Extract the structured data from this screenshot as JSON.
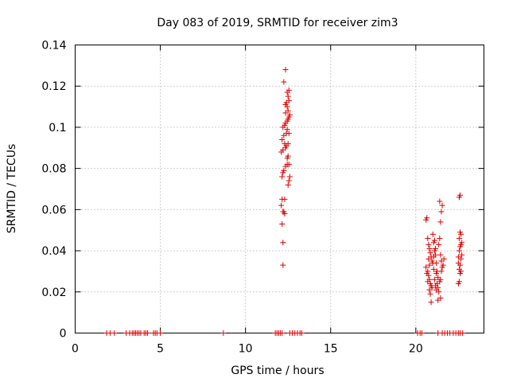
{
  "chart_data": {
    "type": "scatter",
    "title": "Day 083 of 2019, SRMTID for receiver zim3",
    "xlabel": "GPS time / hours",
    "ylabel": "SRMTID / TECUs",
    "xlim": [
      0,
      24
    ],
    "ylim": [
      0,
      0.14
    ],
    "xticks": [
      0,
      5,
      10,
      15,
      20
    ],
    "xtick_labels": [
      "0",
      "5",
      "10",
      "15",
      "20"
    ],
    "yticks": [
      0,
      0.02,
      0.04,
      0.06,
      0.08,
      0.1,
      0.12,
      0.14
    ],
    "ytick_labels": [
      "0",
      "0.02",
      "0.04",
      "0.06",
      "0.08",
      "0.1",
      "0.12",
      "0.14"
    ],
    "grid": true,
    "marker": "+",
    "marker_color": "#e00000",
    "series": [
      {
        "name": "SRMTID",
        "points": [
          [
            1.85,
            0
          ],
          [
            2.05,
            0
          ],
          [
            2.3,
            0
          ],
          [
            3.0,
            0
          ],
          [
            3.2,
            0
          ],
          [
            3.35,
            0
          ],
          [
            3.45,
            0
          ],
          [
            3.55,
            0
          ],
          [
            3.65,
            0
          ],
          [
            3.75,
            0
          ],
          [
            3.85,
            0
          ],
          [
            4.05,
            0
          ],
          [
            4.15,
            0
          ],
          [
            4.25,
            0
          ],
          [
            4.6,
            0
          ],
          [
            4.7,
            0
          ],
          [
            4.8,
            0
          ],
          [
            5.0,
            0
          ],
          [
            8.7,
            0
          ],
          [
            11.75,
            0
          ],
          [
            11.85,
            0
          ],
          [
            11.95,
            0
          ],
          [
            12.05,
            0
          ],
          [
            12.15,
            0
          ],
          [
            12.6,
            0
          ],
          [
            12.75,
            0
          ],
          [
            12.9,
            0
          ],
          [
            13.05,
            0
          ],
          [
            13.2,
            0
          ],
          [
            13.3,
            0
          ],
          [
            20.1,
            0
          ],
          [
            20.25,
            0
          ],
          [
            20.35,
            0
          ],
          [
            21.3,
            0
          ],
          [
            21.55,
            0
          ],
          [
            21.7,
            0
          ],
          [
            21.85,
            0
          ],
          [
            22.0,
            0
          ],
          [
            22.2,
            0
          ],
          [
            22.35,
            0
          ],
          [
            22.5,
            0
          ],
          [
            22.6,
            0
          ],
          [
            22.75,
            0
          ],
          [
            12.2,
            0.033
          ],
          [
            12.2,
            0.044
          ],
          [
            12.15,
            0.053
          ],
          [
            12.2,
            0.059
          ],
          [
            12.25,
            0.059
          ],
          [
            12.3,
            0.058
          ],
          [
            12.1,
            0.062
          ],
          [
            12.15,
            0.065
          ],
          [
            12.3,
            0.065
          ],
          [
            12.5,
            0.072
          ],
          [
            12.55,
            0.074
          ],
          [
            12.6,
            0.076
          ],
          [
            12.15,
            0.076
          ],
          [
            12.2,
            0.078
          ],
          [
            12.25,
            0.079
          ],
          [
            12.35,
            0.081
          ],
          [
            12.45,
            0.082
          ],
          [
            12.55,
            0.082
          ],
          [
            12.45,
            0.085
          ],
          [
            12.5,
            0.086
          ],
          [
            12.1,
            0.088
          ],
          [
            12.2,
            0.089
          ],
          [
            12.35,
            0.09
          ],
          [
            12.4,
            0.091
          ],
          [
            12.3,
            0.092
          ],
          [
            12.5,
            0.092
          ],
          [
            12.15,
            0.094
          ],
          [
            12.25,
            0.096
          ],
          [
            12.55,
            0.097
          ],
          [
            12.4,
            0.097
          ],
          [
            12.45,
            0.099
          ],
          [
            12.2,
            0.1
          ],
          [
            12.3,
            0.101
          ],
          [
            12.35,
            0.102
          ],
          [
            12.45,
            0.103
          ],
          [
            12.5,
            0.104
          ],
          [
            12.55,
            0.105
          ],
          [
            12.6,
            0.106
          ],
          [
            12.35,
            0.107
          ],
          [
            12.5,
            0.108
          ],
          [
            12.45,
            0.11
          ],
          [
            12.35,
            0.111
          ],
          [
            12.4,
            0.112
          ],
          [
            12.55,
            0.113
          ],
          [
            12.5,
            0.115
          ],
          [
            12.45,
            0.117
          ],
          [
            12.55,
            0.118
          ],
          [
            12.25,
            0.122
          ],
          [
            12.35,
            0.128
          ],
          [
            20.6,
            0.055
          ],
          [
            20.65,
            0.056
          ],
          [
            20.7,
            0.046
          ],
          [
            20.75,
            0.043
          ],
          [
            20.8,
            0.041
          ],
          [
            20.85,
            0.039
          ],
          [
            20.9,
            0.037
          ],
          [
            20.95,
            0.035
          ],
          [
            21.0,
            0.034
          ],
          [
            21.05,
            0.031
          ],
          [
            20.7,
            0.03
          ],
          [
            20.75,
            0.028
          ],
          [
            20.8,
            0.026
          ],
          [
            20.85,
            0.024
          ],
          [
            20.9,
            0.023
          ],
          [
            20.95,
            0.022
          ],
          [
            20.8,
            0.021
          ],
          [
            20.85,
            0.019
          ],
          [
            20.9,
            0.015
          ],
          [
            20.75,
            0.036
          ],
          [
            20.8,
            0.033
          ],
          [
            20.6,
            0.032
          ],
          [
            20.65,
            0.029
          ],
          [
            20.7,
            0.025
          ],
          [
            21.0,
            0.048
          ],
          [
            21.05,
            0.044
          ],
          [
            21.1,
            0.04
          ],
          [
            21.15,
            0.038
          ],
          [
            21.2,
            0.034
          ],
          [
            21.25,
            0.03
          ],
          [
            21.3,
            0.027
          ],
          [
            21.1,
            0.026
          ],
          [
            21.15,
            0.023
          ],
          [
            21.2,
            0.021
          ],
          [
            21.25,
            0.024
          ],
          [
            21.3,
            0.022
          ],
          [
            21.35,
            0.02
          ],
          [
            21.4,
            0.025
          ],
          [
            21.45,
            0.026
          ],
          [
            21.5,
            0.03
          ],
          [
            21.35,
            0.043
          ],
          [
            21.4,
            0.046
          ],
          [
            21.45,
            0.054
          ],
          [
            21.5,
            0.059
          ],
          [
            21.55,
            0.062
          ],
          [
            21.4,
            0.064
          ],
          [
            21.45,
            0.038
          ],
          [
            21.5,
            0.035
          ],
          [
            21.55,
            0.032
          ],
          [
            21.6,
            0.033
          ],
          [
            21.65,
            0.036
          ],
          [
            21.3,
            0.016
          ],
          [
            21.45,
            0.017
          ],
          [
            21.2,
            0.029
          ],
          [
            21.05,
            0.037
          ],
          [
            21.1,
            0.045
          ],
          [
            21.15,
            0.041
          ],
          [
            22.5,
            0.024
          ],
          [
            22.55,
            0.025
          ],
          [
            22.6,
            0.029
          ],
          [
            22.65,
            0.03
          ],
          [
            22.55,
            0.031
          ],
          [
            22.6,
            0.033
          ],
          [
            22.65,
            0.036
          ],
          [
            22.5,
            0.037
          ],
          [
            22.55,
            0.04
          ],
          [
            22.6,
            0.042
          ],
          [
            22.65,
            0.043
          ],
          [
            22.55,
            0.046
          ],
          [
            22.6,
            0.049
          ],
          [
            22.65,
            0.048
          ],
          [
            22.7,
            0.044
          ],
          [
            22.55,
            0.066
          ],
          [
            22.6,
            0.067
          ],
          [
            22.5,
            0.034
          ],
          [
            22.7,
            0.038
          ]
        ]
      }
    ]
  }
}
